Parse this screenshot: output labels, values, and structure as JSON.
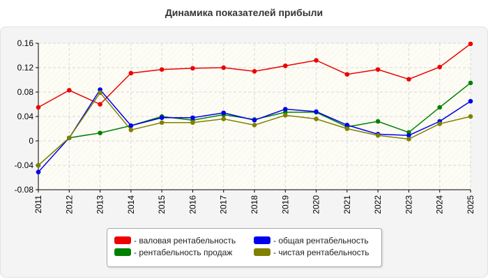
{
  "chart_data": {
    "type": "line",
    "title": "Динамика показателей прибыли",
    "xlabel": "",
    "ylabel": "",
    "x": [
      "2011",
      "2012",
      "2013",
      "2014",
      "2015",
      "2016",
      "2017",
      "2018",
      "2019",
      "2020",
      "2021",
      "2022",
      "2023",
      "2024",
      "2025"
    ],
    "ylim": [
      -0.08,
      0.16
    ],
    "yticks": [
      -0.08,
      -0.04,
      0,
      0.04,
      0.08,
      0.12,
      0.16
    ],
    "ytick_labels": [
      "-0.08",
      "-0.04",
      "0",
      "0.04",
      "0.08",
      "0.12",
      "0.16"
    ],
    "grid": true,
    "legend_position": "bottom",
    "series": [
      {
        "name": "- валовая рентабельность",
        "color": "#ee0000",
        "values": [
          0.055,
          0.083,
          0.06,
          0.111,
          0.117,
          0.119,
          0.12,
          0.114,
          0.123,
          0.132,
          0.109,
          0.117,
          0.101,
          0.121,
          0.159
        ]
      },
      {
        "name": "- общая рентабельность",
        "color": "#0000ee",
        "values": [
          -0.051,
          0.005,
          0.084,
          0.025,
          0.038,
          0.038,
          0.046,
          0.034,
          0.052,
          0.048,
          0.026,
          0.011,
          0.009,
          0.032,
          0.065
        ]
      },
      {
        "name": "- рентабельность продаж",
        "color": "#008000",
        "values": [
          -0.04,
          0.005,
          0.013,
          0.025,
          0.04,
          0.034,
          0.043,
          0.035,
          0.047,
          0.047,
          0.023,
          0.032,
          0.014,
          0.055,
          0.095
        ]
      },
      {
        "name": "- чистая рентабельность",
        "color": "#808000",
        "values": [
          -0.04,
          0.005,
          0.079,
          0.018,
          0.03,
          0.03,
          0.036,
          0.026,
          0.042,
          0.036,
          0.02,
          0.009,
          0.003,
          0.028,
          0.04
        ]
      }
    ]
  }
}
